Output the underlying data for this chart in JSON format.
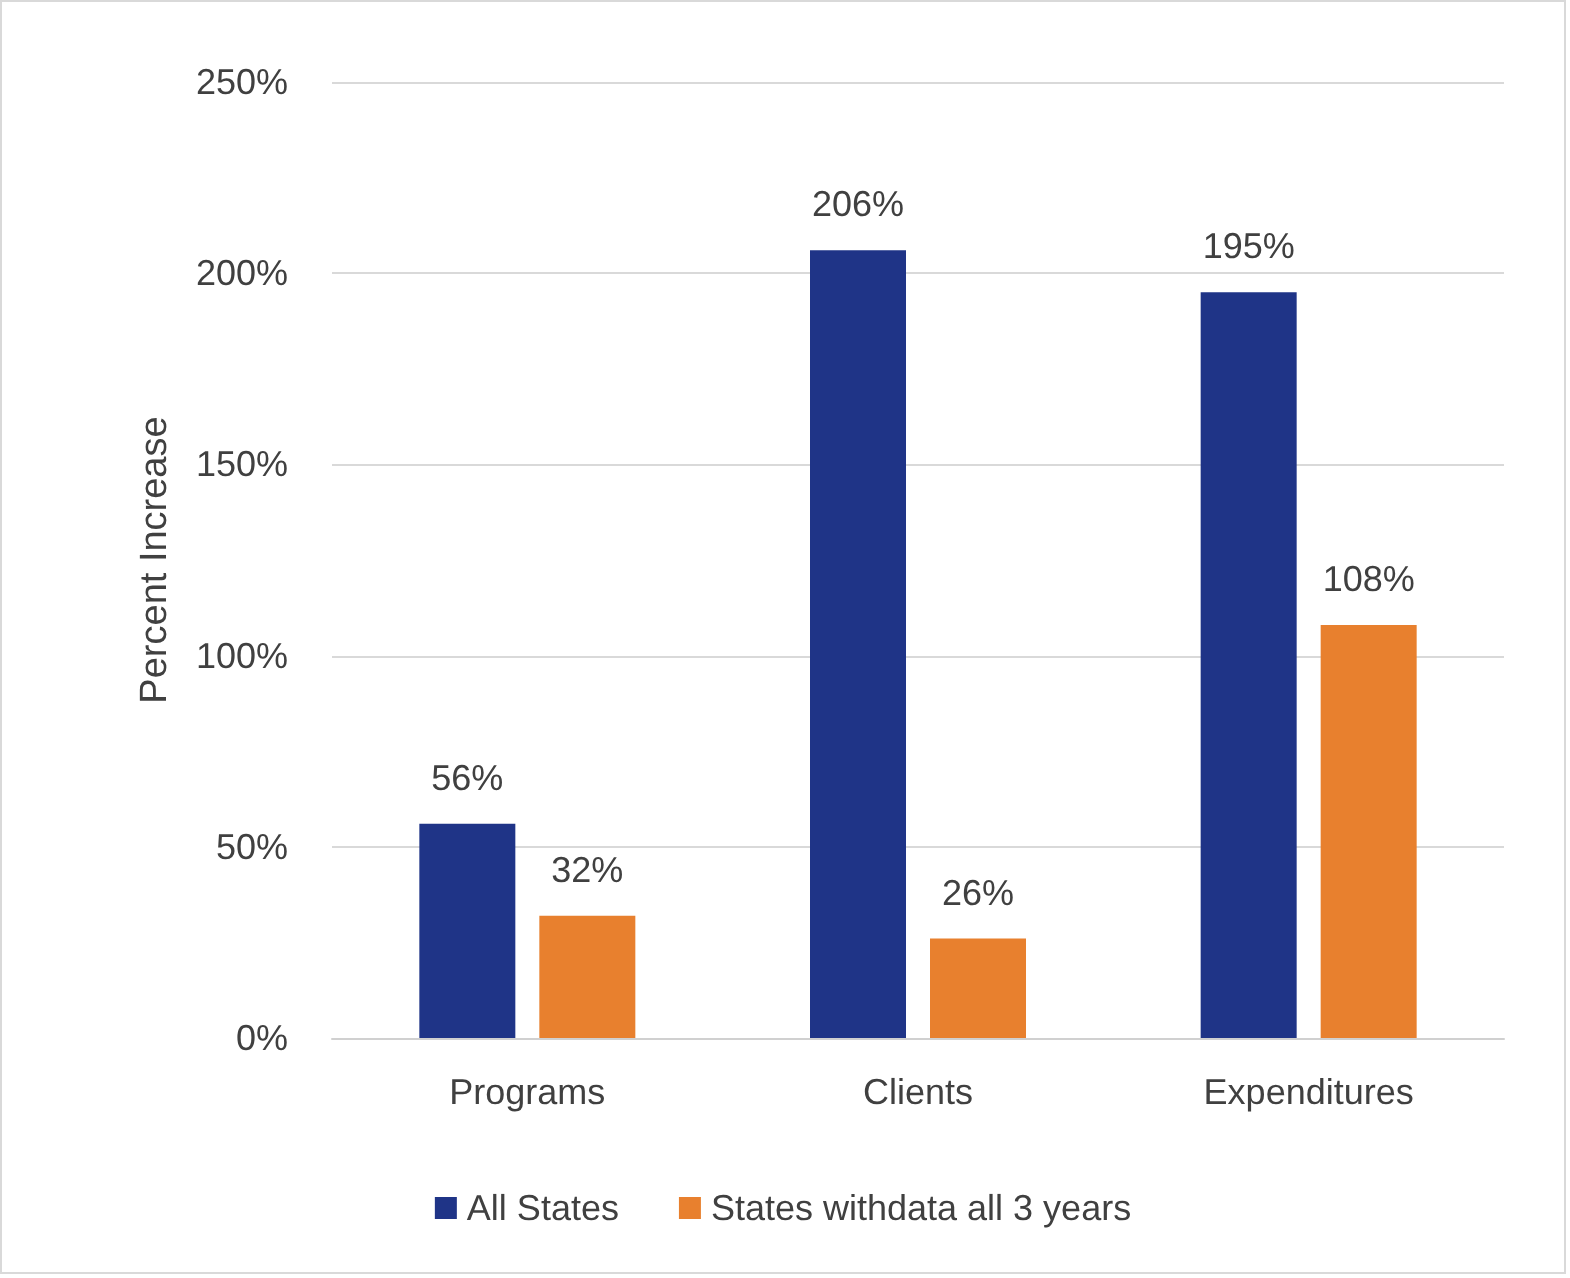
{
  "chart_data": {
    "type": "bar",
    "ylabel": "Percent Increase",
    "categories": [
      "Programs",
      "Clients",
      "Expenditures"
    ],
    "series": [
      {
        "name": "All States",
        "color": "#1f3487",
        "values": [
          56,
          206,
          195
        ],
        "value_labels": [
          "56%",
          "206%",
          "195%"
        ]
      },
      {
        "name": "States withdata all 3 years",
        "color": "#e8802e",
        "values": [
          32,
          26,
          108
        ],
        "value_labels": [
          "32%",
          "26%",
          "108%"
        ]
      }
    ],
    "ylim": [
      0,
      250
    ],
    "yticks": [
      {
        "value": 0,
        "label": "0%"
      },
      {
        "value": 50,
        "label": "50%"
      },
      {
        "value": 100,
        "label": "100%"
      },
      {
        "value": 150,
        "label": "150%"
      },
      {
        "value": 200,
        "label": "200%"
      },
      {
        "value": 250,
        "label": "250%"
      }
    ],
    "grid": "y",
    "legend": "bottom"
  }
}
